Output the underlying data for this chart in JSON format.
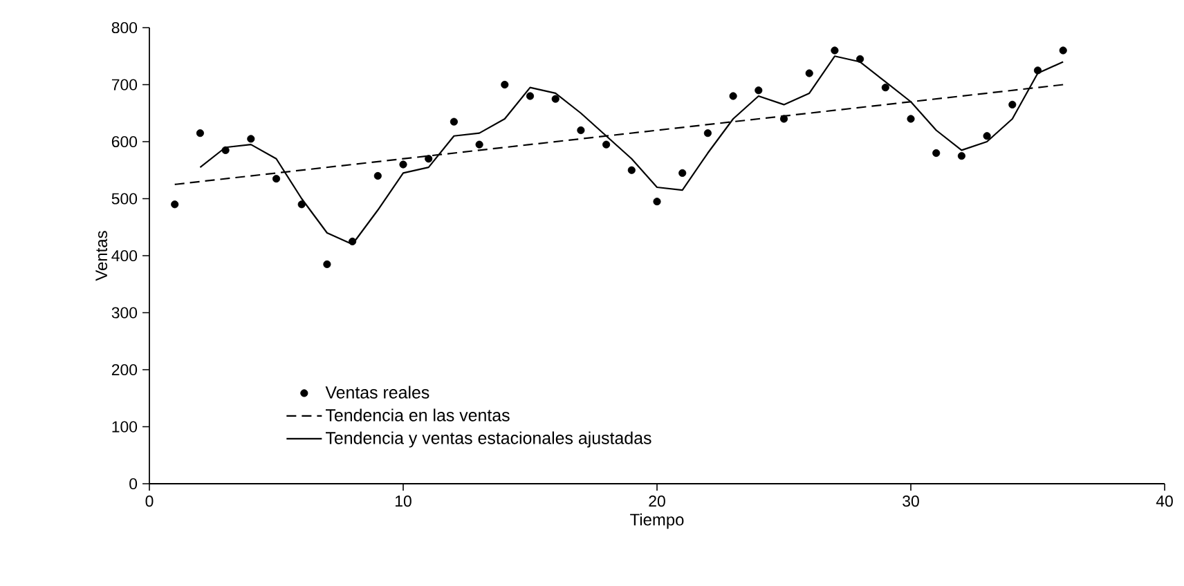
{
  "chart_data": {
    "type": "scatter",
    "xlabel": "Tiempo",
    "ylabel": "Ventas",
    "xlim": [
      0,
      40
    ],
    "ylim": [
      0,
      800
    ],
    "xticks": [
      0,
      10,
      20,
      30,
      40
    ],
    "yticks": [
      0,
      100,
      200,
      300,
      400,
      500,
      600,
      700,
      800
    ],
    "grid": false,
    "legend": "bottom left",
    "series": [
      {
        "name": "Ventas reales",
        "type": "scatter",
        "marker": "circle",
        "color": "#000000",
        "x": [
          1,
          2,
          3,
          4,
          5,
          6,
          7,
          8,
          9,
          10,
          11,
          12,
          13,
          14,
          15,
          16,
          17,
          18,
          19,
          20,
          21,
          22,
          23,
          24,
          25,
          26,
          27,
          28,
          29,
          30,
          31,
          32,
          33,
          34,
          35,
          36
        ],
        "values": [
          490,
          615,
          585,
          605,
          535,
          490,
          385,
          425,
          540,
          560,
          570,
          635,
          595,
          700,
          680,
          675,
          620,
          595,
          550,
          495,
          545,
          615,
          680,
          690,
          640,
          720,
          760,
          745,
          695,
          640,
          580,
          575,
          610,
          665,
          725,
          760
        ]
      },
      {
        "name": "Tendencia en las ventas",
        "type": "line",
        "line_style": "dashed",
        "marker": "none",
        "color": "#000000",
        "x": [
          1,
          36
        ],
        "values": [
          525,
          700
        ]
      },
      {
        "name": "Tendencia y ventas estacionales ajustadas",
        "type": "line",
        "line_style": "solid",
        "marker": "none",
        "color": "#000000",
        "x": [
          2,
          3,
          4,
          5,
          6,
          7,
          8,
          9,
          10,
          11,
          12,
          13,
          14,
          15,
          16,
          17,
          18,
          19,
          20,
          21,
          22,
          23,
          24,
          25,
          26,
          27,
          28,
          29,
          30,
          31,
          32,
          33,
          34,
          35,
          36
        ],
        "values": [
          555,
          590,
          595,
          570,
          500,
          440,
          420,
          480,
          545,
          555,
          610,
          615,
          640,
          695,
          685,
          650,
          610,
          570,
          520,
          515,
          580,
          640,
          680,
          665,
          685,
          750,
          740,
          705,
          670,
          620,
          585,
          600,
          640,
          720,
          740
        ]
      }
    ]
  }
}
